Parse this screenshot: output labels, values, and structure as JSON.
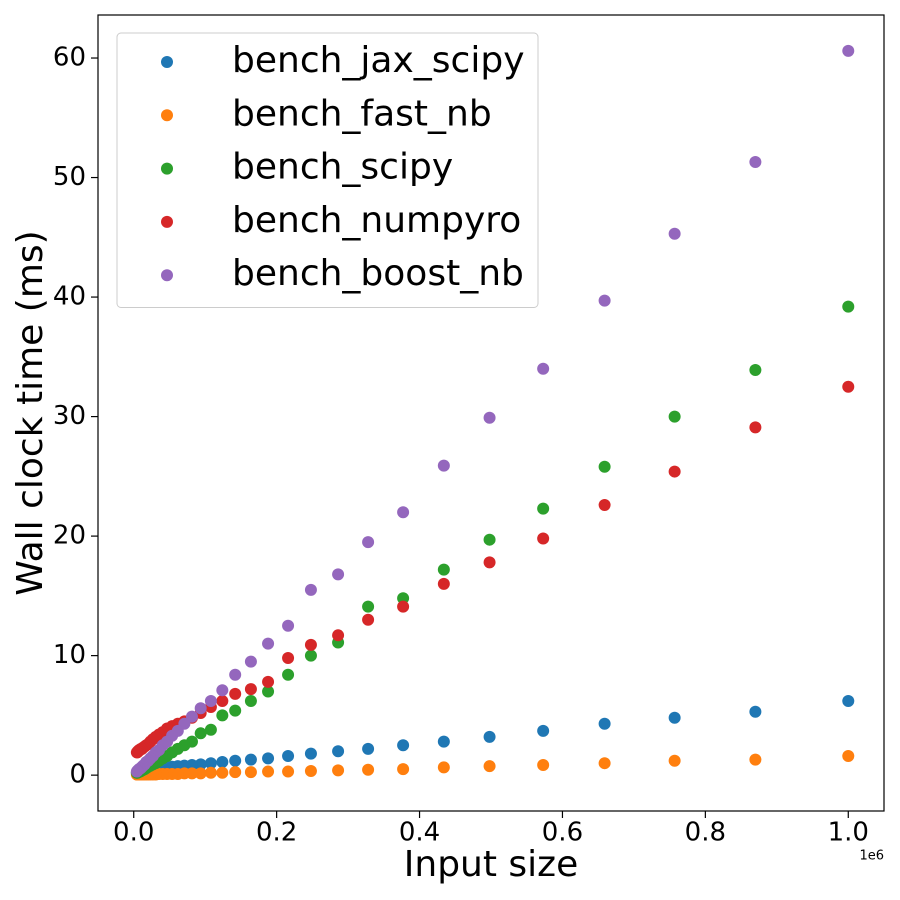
{
  "chart_data": {
    "type": "scatter",
    "xlabel": "Input size",
    "ylabel": "Wall clock time (ms)",
    "x_offset_label": "1e6",
    "x": [
      1000000,
      870000,
      757000,
      659000,
      573000,
      498000,
      434000,
      377000,
      328000,
      286000,
      248000,
      216000,
      188000,
      164000,
      142000,
      124000,
      108000,
      93700,
      81500,
      70900,
      61700,
      53700,
      46700,
      40600,
      35400,
      30800,
      26800,
      23300,
      20300,
      17600,
      15300,
      13300,
      11600,
      10100,
      8780,
      7640,
      6650,
      5780,
      5030,
      4380
    ],
    "series": [
      {
        "name": "bench_jax_scipy",
        "color": "#1f77b4",
        "values": [
          6.2,
          5.3,
          4.8,
          4.3,
          3.7,
          3.2,
          2.8,
          2.5,
          2.2,
          2.0,
          1.8,
          1.6,
          1.4,
          1.3,
          1.2,
          1.1,
          1.0,
          0.9,
          0.85,
          0.8,
          0.75,
          0.7,
          0.65,
          0.6,
          0.55,
          0.5,
          0.5,
          0.45,
          0.45,
          0.4,
          0.4,
          0.35,
          0.35,
          0.3,
          0.3,
          0.3,
          0.25,
          0.25,
          0.2,
          0.2
        ]
      },
      {
        "name": "bench_fast_nb",
        "color": "#ff7f0e",
        "values": [
          1.6,
          1.3,
          1.2,
          1.0,
          0.85,
          0.75,
          0.65,
          0.5,
          0.45,
          0.4,
          0.35,
          0.3,
          0.3,
          0.25,
          0.25,
          0.2,
          0.2,
          0.15,
          0.15,
          0.15,
          0.1,
          0.1,
          0.1,
          0.1,
          0.1,
          0.05,
          0.05,
          0.05,
          0.05,
          0.05,
          0.05,
          0.05,
          0.05,
          0.05,
          0.05,
          0.05,
          0.05,
          0.05,
          0.05,
          0.05
        ]
      },
      {
        "name": "bench_scipy",
        "color": "#2ca02c",
        "values": [
          39.2,
          33.9,
          30.0,
          25.8,
          22.3,
          19.7,
          17.2,
          14.8,
          14.1,
          11.1,
          10.0,
          8.4,
          7.0,
          6.2,
          5.4,
          5.0,
          3.8,
          3.5,
          2.8,
          2.5,
          2.2,
          1.9,
          1.6,
          1.4,
          1.2,
          1.0,
          0.9,
          0.8,
          0.7,
          0.6,
          0.5,
          0.45,
          0.4,
          0.35,
          0.3,
          0.3,
          0.25,
          0.25,
          0.2,
          0.2
        ]
      },
      {
        "name": "bench_numpyro",
        "color": "#d62728",
        "values": [
          32.5,
          29.1,
          25.4,
          22.6,
          19.8,
          17.8,
          16.0,
          14.1,
          13.0,
          11.7,
          10.9,
          9.8,
          7.8,
          7.2,
          6.8,
          6.2,
          5.7,
          5.2,
          4.8,
          4.5,
          4.3,
          4.1,
          3.9,
          3.6,
          3.4,
          3.2,
          3.0,
          2.8,
          2.6,
          2.5,
          2.4,
          2.3,
          2.2,
          2.2,
          2.1,
          2.1,
          2.0,
          2.0,
          1.9,
          1.9
        ]
      },
      {
        "name": "bench_boost_nb",
        "color": "#9467bd",
        "values": [
          60.6,
          51.3,
          45.3,
          39.7,
          34.0,
          29.9,
          25.9,
          22.0,
          19.5,
          16.8,
          15.5,
          12.5,
          11.0,
          9.5,
          8.4,
          7.1,
          6.2,
          5.6,
          4.9,
          4.3,
          3.7,
          3.3,
          2.8,
          2.5,
          2.1,
          1.9,
          1.6,
          1.4,
          1.2,
          1.1,
          0.9,
          0.8,
          0.7,
          0.6,
          0.55,
          0.5,
          0.45,
          0.4,
          0.35,
          0.3
        ]
      }
    ],
    "xlim": [
      -50000,
      1050000
    ],
    "xticks": [
      {
        "value": 0,
        "label": "0.0"
      },
      {
        "value": 200000,
        "label": "0.2"
      },
      {
        "value": 400000,
        "label": "0.4"
      },
      {
        "value": 600000,
        "label": "0.6"
      },
      {
        "value": 800000,
        "label": "0.8"
      },
      {
        "value": 1000000,
        "label": "1.0"
      }
    ],
    "ylim": [
      -3,
      63.6
    ],
    "yticks": [
      0,
      10,
      20,
      30,
      40,
      50,
      60
    ],
    "grid": false,
    "legend": "upper left"
  }
}
